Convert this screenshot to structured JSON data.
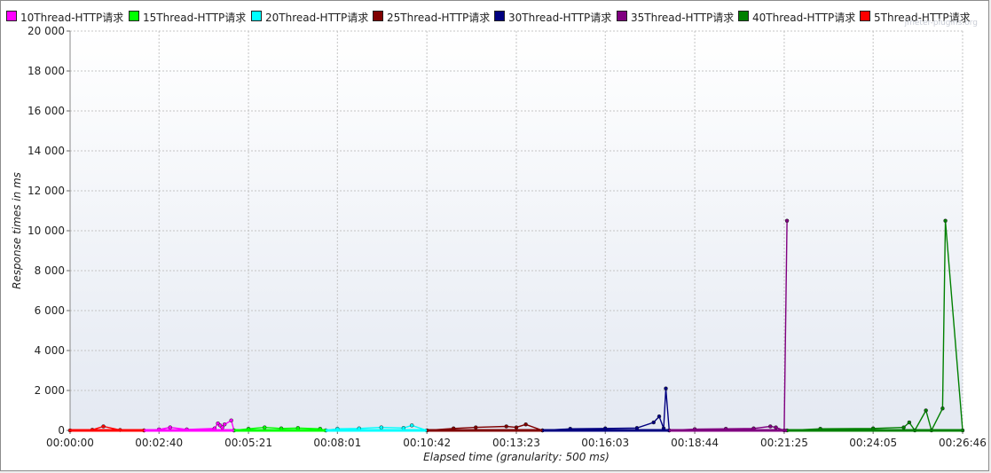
{
  "window": {
    "watermark": "jmeter-plugins.org"
  },
  "chart_data": {
    "type": "line",
    "title": "",
    "xlabel": "Elapsed time (granularity: 500 ms)",
    "ylabel": "Response times in ms",
    "ylim": [
      0,
      20000
    ],
    "xlim": [
      "00:00:00",
      "00:26:46"
    ],
    "x_tick_labels": [
      "00:00:00",
      "00:02:40",
      "00:05:21",
      "00:08:01",
      "00:10:42",
      "00:13:23",
      "00:16:03",
      "00:18:44",
      "00:21:25",
      "00:24:05",
      "00:26:46"
    ],
    "y_tick_labels": [
      "0",
      "2 000",
      "4 000",
      "6 000",
      "8 000",
      "10 000",
      "12 000",
      "14 000",
      "16 000",
      "18 000",
      "20 000"
    ],
    "grid": true,
    "legend": "top",
    "series": [
      {
        "name": "10Thread-HTTP请求",
        "color": "#ff00ff",
        "x": [
          "00:02:13",
          "00:02:40",
          "00:03:00",
          "00:03:30",
          "00:04:20",
          "00:04:26",
          "00:04:30",
          "00:04:34",
          "00:04:38",
          "00:04:50",
          "00:04:55"
        ],
        "y": [
          0,
          50,
          150,
          50,
          100,
          350,
          250,
          150,
          300,
          500,
          0
        ]
      },
      {
        "name": "15Thread-HTTP请求",
        "color": "#00ff00",
        "x": [
          "00:04:55",
          "00:05:21",
          "00:05:50",
          "00:06:20",
          "00:06:50",
          "00:07:30",
          "00:07:40"
        ],
        "y": [
          0,
          80,
          150,
          100,
          120,
          80,
          0
        ]
      },
      {
        "name": "20Thread-HTTP请求",
        "color": "#00ffff",
        "x": [
          "00:07:40",
          "00:08:01",
          "00:08:40",
          "00:09:20",
          "00:10:00",
          "00:10:15",
          "00:10:42"
        ],
        "y": [
          0,
          80,
          100,
          150,
          120,
          250,
          0
        ]
      },
      {
        "name": "25Thread-HTTP请求",
        "color": "#800000",
        "x": [
          "00:10:42",
          "00:11:30",
          "00:12:10",
          "00:13:05",
          "00:13:23",
          "00:13:40",
          "00:14:10"
        ],
        "y": [
          0,
          100,
          150,
          200,
          150,
          300,
          0
        ]
      },
      {
        "name": "30Thread-HTTP请求",
        "color": "#000080",
        "x": [
          "00:14:10",
          "00:15:00",
          "00:16:03",
          "00:17:00",
          "00:17:30",
          "00:17:40",
          "00:17:48",
          "00:17:52",
          "00:17:58"
        ],
        "y": [
          0,
          80,
          100,
          120,
          400,
          700,
          100,
          2100,
          0
        ]
      },
      {
        "name": "35Thread-HTTP请求",
        "color": "#800080",
        "x": [
          "00:17:58",
          "00:18:44",
          "00:19:40",
          "00:20:30",
          "00:21:00",
          "00:21:10",
          "00:21:25",
          "00:21:30"
        ],
        "y": [
          0,
          60,
          80,
          100,
          200,
          150,
          0,
          10500
        ]
      },
      {
        "name": "40Thread-HTTP请求",
        "color": "#008000",
        "x": [
          "00:21:30",
          "00:22:30",
          "00:24:05",
          "00:25:00",
          "00:25:10",
          "00:25:20",
          "00:25:40",
          "00:25:50",
          "00:26:10",
          "00:26:15",
          "00:26:46"
        ],
        "y": [
          0,
          80,
          100,
          150,
          400,
          0,
          1000,
          0,
          1100,
          10500,
          0
        ]
      },
      {
        "name": "5Thread-HTTP请求",
        "color": "#ff0000",
        "x": [
          "00:00:00",
          "00:00:40",
          "00:01:00",
          "00:01:30",
          "00:02:13"
        ],
        "y": [
          0,
          30,
          200,
          20,
          0
        ]
      }
    ]
  }
}
